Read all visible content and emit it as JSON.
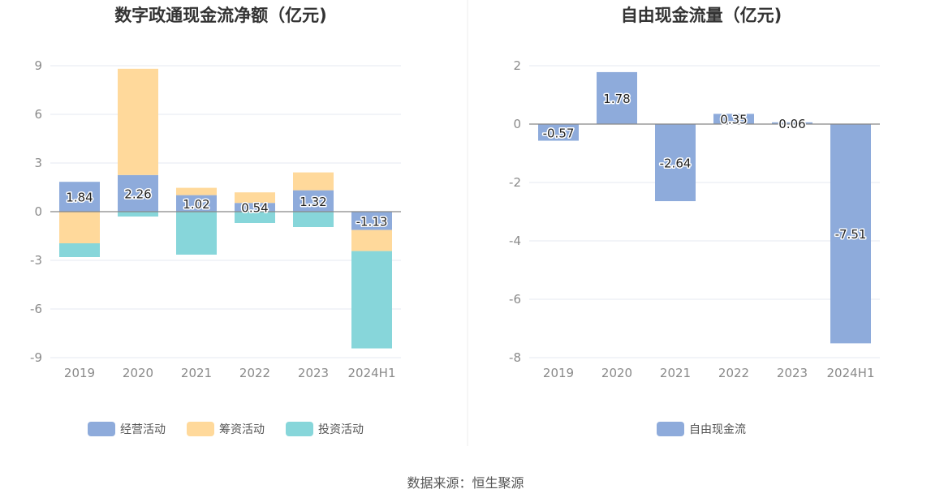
{
  "source": "数据来源：恒生聚源",
  "chart_data": [
    {
      "type": "bar",
      "stacked": true,
      "title": "数字政通现金流净额（亿元)",
      "categories": [
        "2019",
        "2020",
        "2021",
        "2022",
        "2023",
        "2024H1"
      ],
      "ylim": [
        -9,
        9
      ],
      "yticks": [
        -9,
        -6,
        -3,
        0,
        3,
        6,
        9
      ],
      "grid": true,
      "legend_position": "bottom",
      "series": [
        {
          "name": "经营活动",
          "color": "#8eabdb",
          "values": [
            1.84,
            2.26,
            1.02,
            0.54,
            1.32,
            -1.13
          ],
          "labels": [
            "1.84",
            "2.26",
            "1.02",
            "0.54",
            "1.32",
            "-1.13"
          ]
        },
        {
          "name": "筹资活动",
          "color": "#ffd99b",
          "values": [
            -1.95,
            6.55,
            0.45,
            0.65,
            1.1,
            -1.3
          ]
        },
        {
          "name": "投资活动",
          "color": "#87d6da",
          "values": [
            -0.85,
            -0.3,
            -2.65,
            -0.7,
            -0.95,
            -6.0
          ]
        }
      ]
    },
    {
      "type": "bar",
      "title": "自由现金流量（亿元)",
      "categories": [
        "2019",
        "2020",
        "2021",
        "2022",
        "2023",
        "2024H1"
      ],
      "ylim": [
        -8,
        2
      ],
      "yticks": [
        -8,
        -6,
        -4,
        -2,
        0,
        2
      ],
      "grid": true,
      "legend_position": "bottom",
      "series": [
        {
          "name": "自由现金流",
          "color": "#8eabdb",
          "values": [
            -0.57,
            1.78,
            -2.64,
            0.35,
            0.06,
            -7.51
          ],
          "labels": [
            "-0.57",
            "1.78",
            "-2.64",
            "0.35",
            "0.06",
            "-7.51"
          ]
        }
      ]
    }
  ]
}
